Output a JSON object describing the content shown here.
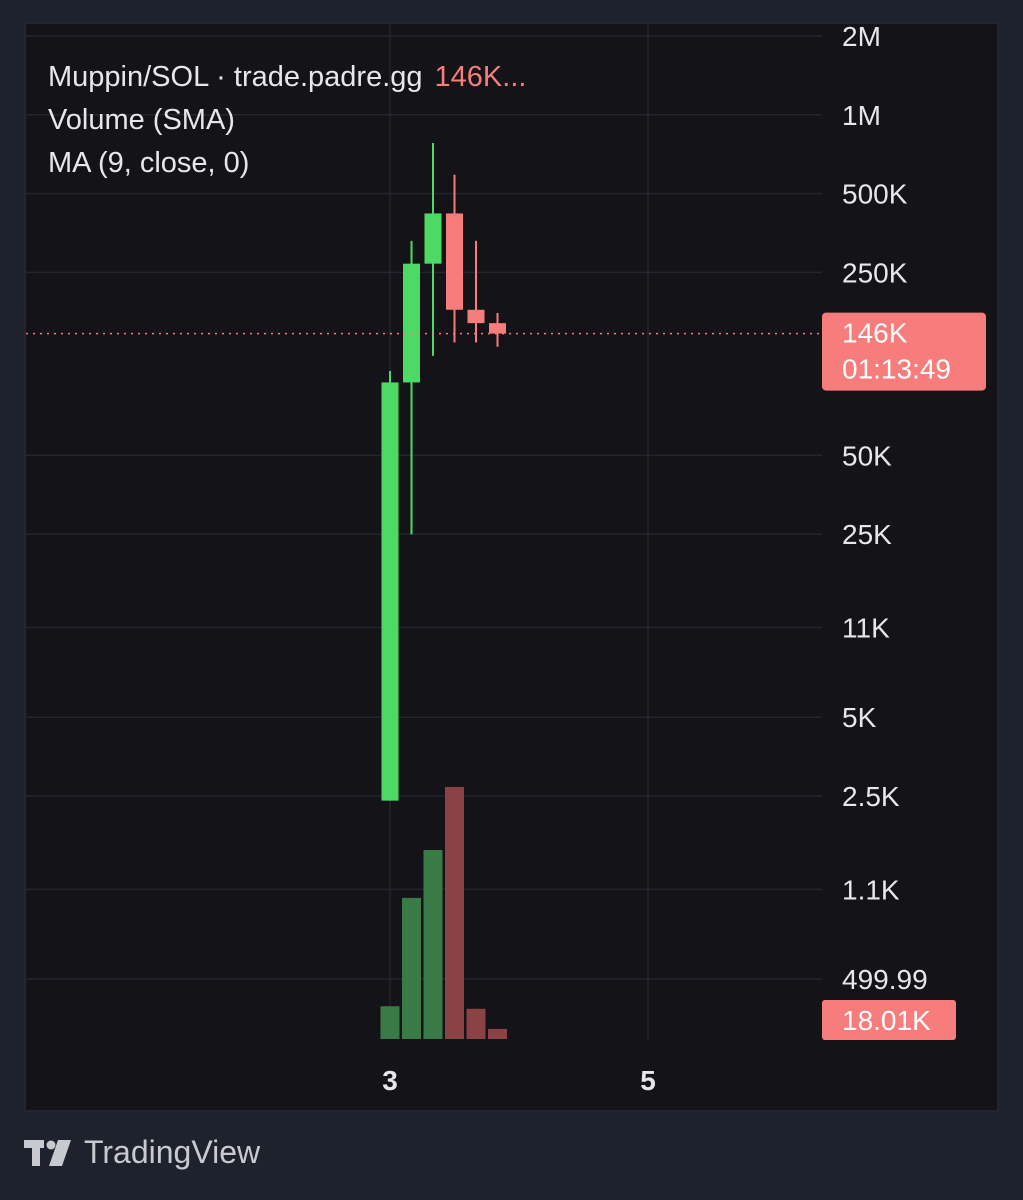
{
  "legend": {
    "symbol": "Muppin/SOL · trade.padre.gg",
    "last_value": "146K...",
    "indicator_volume": "Volume (SMA)",
    "indicator_ma": "MA (9, close, 0)"
  },
  "footer": {
    "brand": "TradingView",
    "logo_icon": "tradingview-logo-icon"
  },
  "price_tag": {
    "value": "146K",
    "countdown": "01:13:49"
  },
  "volume_tag": {
    "value": "18.01K"
  },
  "colors": {
    "up": "#4cd964",
    "down": "#f77c7c",
    "volume_up": "#3a7a46",
    "volume_down": "#8a4245",
    "background": "#131318",
    "page": "#1e222d"
  },
  "chart_data": {
    "type": "candlestick",
    "y_scale": "log",
    "y_ticks": [
      {
        "value": 2000000,
        "label": "2M"
      },
      {
        "value": 1000000,
        "label": "1M"
      },
      {
        "value": 500000,
        "label": "500K"
      },
      {
        "value": 250000,
        "label": "250K"
      },
      {
        "value": 50000,
        "label": "50K"
      },
      {
        "value": 25000,
        "label": "25K"
      },
      {
        "value": 11000,
        "label": "11K"
      },
      {
        "value": 5000,
        "label": "5K"
      },
      {
        "value": 2500,
        "label": "2.5K"
      },
      {
        "value": 1100,
        "label": "1.1K"
      },
      {
        "value": 499.99,
        "label": "499.99"
      }
    ],
    "x_ticks": [
      {
        "index": 0,
        "label": "3"
      },
      {
        "index": 12,
        "label": "5"
      }
    ],
    "candles": [
      {
        "open": 2400,
        "high": 105000,
        "low": 2400,
        "close": 95000
      },
      {
        "open": 95000,
        "high": 330000,
        "low": 25000,
        "close": 270000
      },
      {
        "open": 270000,
        "high": 780000,
        "low": 120000,
        "close": 420000
      },
      {
        "open": 420000,
        "high": 590000,
        "low": 135000,
        "close": 180000
      },
      {
        "open": 180000,
        "high": 330000,
        "low": 135000,
        "close": 160000
      },
      {
        "open": 160000,
        "high": 175000,
        "low": 130000,
        "close": 146000
      }
    ],
    "volume": [
      {
        "value": 0.13,
        "direction": "up"
      },
      {
        "value": 0.56,
        "direction": "up"
      },
      {
        "value": 0.75,
        "direction": "up"
      },
      {
        "value": 1.0,
        "direction": "down"
      },
      {
        "value": 0.12,
        "direction": "down"
      },
      {
        "value": 0.04,
        "direction": "down"
      }
    ],
    "current_price": 146000
  }
}
